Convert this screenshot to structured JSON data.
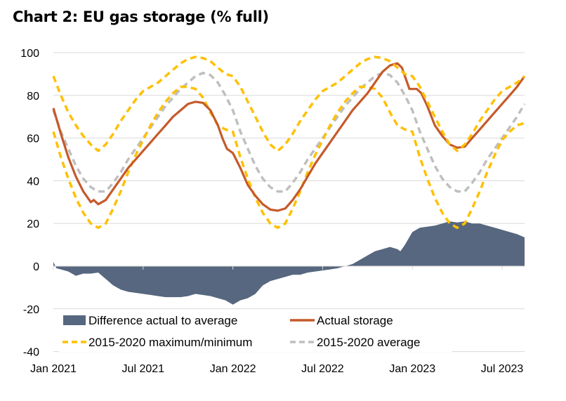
{
  "chart_data": {
    "type": "line",
    "title": "Chart 2: EU gas storage (% full)",
    "xlabel": "",
    "ylabel": "",
    "ylim": [
      -40,
      100
    ],
    "yticks": [
      "100",
      "80",
      "60",
      "40",
      "20",
      "0",
      "-20",
      "-40"
    ],
    "ytick_values": [
      100,
      80,
      60,
      40,
      20,
      0,
      -20,
      -40
    ],
    "xticks": [
      "Jan 2021",
      "Jul 2021",
      "Jan 2022",
      "Jul 2022",
      "Jan 2023",
      "Jul 2023"
    ],
    "xtick_months": [
      0,
      6,
      12,
      18,
      24,
      30
    ],
    "x_unit": "months since Jan 2021",
    "xlim": [
      0,
      31.5
    ],
    "grid": true,
    "legend_position": "bottom-inside",
    "colors": {
      "difference": "#56677f",
      "actual": "#c55a2b",
      "maxmin": "#ffc000",
      "average": "#bfbfbf",
      "grid": "#d9d9d9"
    },
    "legend": [
      {
        "key": "difference",
        "label": "Difference actual to average",
        "style": "area"
      },
      {
        "key": "actual",
        "label": "Actual storage",
        "style": "solid"
      },
      {
        "key": "maxmin",
        "label": "2015-2020 maximum/minimum",
        "style": "dashed"
      },
      {
        "key": "average",
        "label": "2015-2020 average",
        "style": "dashed"
      }
    ],
    "series": [
      {
        "name": "2015-2020 maximum",
        "key": "max",
        "x": [
          0,
          0.5,
          1,
          1.5,
          2,
          2.5,
          3,
          3.5,
          4,
          4.5,
          5,
          5.5,
          6,
          6.5,
          7,
          7.5,
          8,
          8.5,
          9,
          9.5,
          10,
          10.5,
          11,
          11.5,
          12,
          12.5,
          13,
          13.5,
          14,
          14.5,
          15,
          15.5,
          16,
          16.5,
          17,
          17.5,
          18,
          18.5,
          19,
          19.5,
          20,
          20.5,
          21,
          21.5,
          22,
          22.5,
          23,
          23.5,
          24,
          24.5,
          25,
          25.5,
          26,
          26.5,
          27,
          27.5,
          28,
          28.5,
          29,
          29.5,
          30,
          30.5,
          31,
          31.5
        ],
        "values": [
          89,
          80,
          72,
          66,
          61,
          57,
          54,
          57,
          62,
          68,
          73,
          78,
          82,
          84,
          86,
          89,
          92,
          95,
          97,
          98,
          97.5,
          96,
          93,
          90,
          89,
          84,
          77,
          70,
          63,
          57,
          54,
          57,
          62,
          68,
          73,
          78,
          82,
          84,
          86,
          89,
          92,
          95,
          97,
          98,
          97.5,
          96,
          93,
          90,
          89,
          84,
          77,
          70,
          63,
          57,
          54,
          57,
          62,
          68,
          73,
          78,
          82,
          84,
          86,
          89
        ]
      },
      {
        "name": "2015-2020 minimum",
        "key": "min",
        "x": [
          0,
          0.5,
          1,
          1.5,
          2,
          2.5,
          3,
          3.5,
          4,
          4.5,
          5,
          5.5,
          6,
          6.5,
          7,
          7.5,
          8,
          8.5,
          9,
          9.5,
          10,
          10.5,
          11,
          11.5,
          12,
          12.5,
          13,
          13.5,
          14,
          14.5,
          15,
          15.5,
          16,
          16.5,
          17,
          17.5,
          18,
          18.5,
          19,
          19.5,
          20,
          20.5,
          21,
          21.5,
          22,
          22.5,
          23,
          23.5,
          24,
          24.5,
          25,
          25.5,
          26,
          26.5,
          27,
          27.5,
          28,
          28.5,
          29,
          29.5,
          30,
          30.5,
          31,
          31.5
        ],
        "values": [
          63,
          51,
          41,
          32,
          25,
          20,
          18,
          20,
          27,
          35,
          44,
          52,
          59,
          66,
          72,
          77,
          81,
          84,
          84,
          83,
          79,
          72,
          66,
          64,
          63,
          51,
          41,
          32,
          25,
          20,
          18,
          20,
          27,
          35,
          44,
          52,
          59,
          66,
          72,
          77,
          81,
          84,
          84,
          83,
          79,
          72,
          66,
          64,
          63,
          51,
          41,
          32,
          25,
          20,
          18,
          20,
          27,
          35,
          44,
          52,
          59,
          63,
          66,
          67
        ]
      },
      {
        "name": "2015-2020 average",
        "key": "average",
        "x": [
          0,
          0.5,
          1,
          1.5,
          2,
          2.5,
          3,
          3.5,
          4,
          4.5,
          5,
          5.5,
          6,
          6.5,
          7,
          7.5,
          8,
          8.5,
          9,
          9.5,
          10,
          10.5,
          11,
          11.5,
          12,
          12.5,
          13,
          13.5,
          14,
          14.5,
          15,
          15.5,
          16,
          16.5,
          17,
          17.5,
          18,
          18.5,
          19,
          19.5,
          20,
          20.5,
          21,
          21.5,
          22,
          22.5,
          23,
          23.5,
          24,
          24.5,
          25,
          25.5,
          26,
          26.5,
          27,
          27.5,
          28,
          28.5,
          29,
          29.5,
          30,
          30.5,
          31,
          31.5
        ],
        "values": [
          73,
          63,
          55,
          47,
          41,
          37,
          35,
          35,
          39,
          44,
          50,
          55,
          60,
          65,
          70,
          75,
          79,
          83,
          86,
          89,
          90.5,
          89.5,
          86,
          80,
          73,
          63,
          55,
          47,
          41,
          37,
          35,
          35,
          39,
          44,
          50,
          55,
          60,
          65,
          70,
          75,
          79,
          83,
          86,
          89,
          90.5,
          89.5,
          86,
          80,
          73,
          63,
          55,
          47,
          41,
          37,
          35,
          35,
          39,
          44,
          50,
          55,
          60,
          65,
          70,
          76
        ]
      },
      {
        "name": "Actual storage",
        "key": "actual",
        "x": [
          0,
          0.5,
          1,
          1.5,
          2,
          2.5,
          2.7,
          3,
          3.5,
          4,
          4.5,
          5,
          5.5,
          6,
          6.5,
          7,
          7.5,
          8,
          8.5,
          9,
          9.5,
          10,
          10.5,
          11,
          11.3,
          11.6,
          12,
          12.5,
          13,
          13.5,
          14,
          14.5,
          15,
          15.5,
          16,
          16.5,
          17,
          17.5,
          18,
          18.5,
          19,
          19.5,
          20,
          20.5,
          21,
          21.5,
          22,
          22.5,
          23,
          23.3,
          23.6,
          23.8,
          24.3,
          24.6,
          25,
          25.5,
          26,
          26.5,
          27,
          27.5,
          28,
          28.5,
          29,
          29.5,
          30,
          30.5,
          31,
          31.5
        ],
        "values": [
          74,
          62,
          51,
          42,
          35,
          30,
          31,
          29,
          31,
          36,
          41,
          46,
          50,
          54,
          58,
          62,
          66,
          70,
          73,
          76,
          77,
          76.5,
          73,
          66,
          60,
          55,
          53,
          46,
          38,
          33,
          29,
          26.5,
          26,
          27,
          31,
          36,
          42,
          48,
          53,
          58,
          63,
          68,
          73,
          77,
          81,
          86,
          91,
          94,
          95,
          93,
          87,
          83,
          83,
          81,
          75,
          66,
          61,
          57,
          55.5,
          56,
          60,
          64,
          68,
          72,
          76,
          80,
          84,
          89
        ]
      },
      {
        "name": "Difference actual to average",
        "key": "difference",
        "x": [
          0,
          0.2,
          0.5,
          1,
          1.5,
          2,
          2.5,
          3,
          3.5,
          4,
          4.5,
          5,
          5.5,
          6,
          6.5,
          7,
          7.5,
          8,
          8.5,
          9,
          9.5,
          10,
          10.5,
          11,
          11.5,
          12,
          12.5,
          13,
          13.5,
          14,
          14.5,
          15,
          15.5,
          16,
          16.5,
          17,
          17.5,
          18,
          18.5,
          19,
          19.5,
          20,
          20.5,
          21,
          21.5,
          22,
          22.5,
          23,
          23.2,
          23.5,
          24,
          24.5,
          25,
          25.5,
          26,
          26.5,
          27,
          27.5,
          28,
          28.5,
          29,
          29.5,
          30,
          30.5,
          31,
          31.5
        ],
        "values": [
          2,
          -1,
          -1.5,
          -2.5,
          -4.5,
          -3.5,
          -3.5,
          -3,
          -6,
          -9,
          -11,
          -12,
          -12.5,
          -13,
          -13.5,
          -14,
          -14.5,
          -14.5,
          -14.5,
          -14,
          -13,
          -13.5,
          -14,
          -15,
          -16,
          -18,
          -16,
          -15,
          -13,
          -9,
          -7,
          -6,
          -5,
          -4,
          -4,
          -3,
          -2.5,
          -2,
          -1.5,
          -1,
          0,
          1,
          3,
          5,
          7,
          8,
          9,
          8,
          7,
          10,
          16,
          18,
          18.5,
          19,
          20,
          21,
          20.5,
          21,
          20,
          20,
          19,
          18,
          17,
          16,
          15,
          13.5
        ]
      }
    ]
  }
}
